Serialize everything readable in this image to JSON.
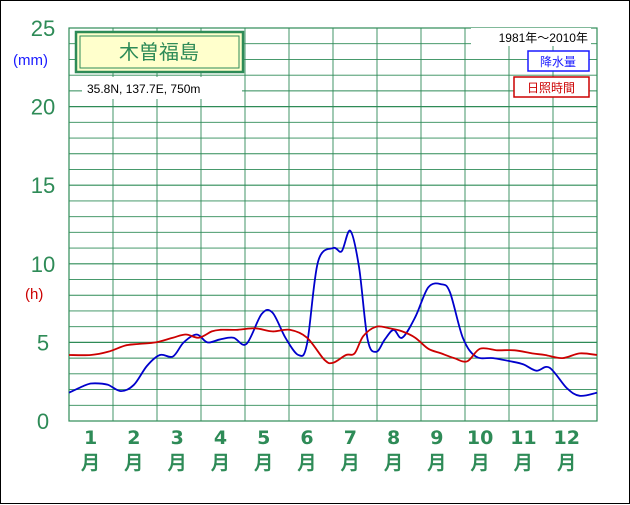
{
  "chart_data": {
    "type": "line",
    "station": "木曽福島",
    "coords": "35.8N,  137.7E,  750m",
    "period": "1981年〜2010年",
    "unit_precip": "(mm)",
    "unit_sun": "(h)",
    "y_ticks": [
      "0",
      "5",
      "10",
      "15",
      "20",
      "25"
    ],
    "ylim": [
      0,
      25
    ],
    "xlim": [
      0.5,
      12.7
    ],
    "categories": [
      {
        "num": "1",
        "suffix": "月"
      },
      {
        "num": "2",
        "suffix": "月"
      },
      {
        "num": "3",
        "suffix": "月"
      },
      {
        "num": "4",
        "suffix": "月"
      },
      {
        "num": "5",
        "suffix": "月"
      },
      {
        "num": "6",
        "suffix": "月"
      },
      {
        "num": "7",
        "suffix": "月"
      },
      {
        "num": "8",
        "suffix": "月"
      },
      {
        "num": "9",
        "suffix": "月"
      },
      {
        "num": "10",
        "suffix": "月"
      },
      {
        "num": "11",
        "suffix": "月"
      },
      {
        "num": "12",
        "suffix": "月"
      }
    ],
    "grid": true,
    "series": [
      {
        "name": "降水量",
        "color": "#0000cc",
        "x": [
          0.5,
          0.9,
          1.1,
          1.4,
          1.7,
          2.0,
          2.3,
          2.6,
          2.9,
          3.15,
          3.45,
          3.7,
          4.0,
          4.3,
          4.6,
          4.95,
          5.2,
          5.5,
          5.8,
          6.0,
          6.25,
          6.6,
          6.8,
          7.0,
          7.2,
          7.4,
          7.6,
          7.8,
          8.0,
          8.2,
          8.5,
          8.8,
          9.1,
          9.3,
          9.6,
          9.9,
          10.3,
          10.7,
          11.0,
          11.3,
          11.6,
          12.0,
          12.3,
          12.7
        ],
        "y": [
          1.8,
          2.3,
          2.4,
          2.3,
          1.9,
          2.3,
          3.5,
          4.2,
          4.1,
          5.0,
          5.5,
          5.0,
          5.2,
          5.3,
          4.9,
          6.8,
          6.9,
          5.3,
          4.2,
          4.9,
          10.1,
          11.0,
          10.8,
          12.1,
          9.8,
          5.2,
          4.4,
          5.2,
          5.8,
          5.3,
          6.6,
          8.5,
          8.7,
          8.2,
          5.3,
          4.1,
          4.0,
          3.8,
          3.6,
          3.2,
          3.4,
          2.1,
          1.6,
          1.8
        ]
      },
      {
        "name": "日照時間",
        "color": "#cc0000",
        "x": [
          0.5,
          1.0,
          1.4,
          1.8,
          2.1,
          2.5,
          2.9,
          3.2,
          3.5,
          3.8,
          4.0,
          4.4,
          4.8,
          5.2,
          5.6,
          6.0,
          6.4,
          6.6,
          6.9,
          7.1,
          7.3,
          7.6,
          7.9,
          8.2,
          8.5,
          8.8,
          9.1,
          9.4,
          9.7,
          10.0,
          10.4,
          10.8,
          11.2,
          11.5,
          11.9,
          12.3,
          12.7
        ],
        "y": [
          4.2,
          4.2,
          4.4,
          4.8,
          4.9,
          5.0,
          5.3,
          5.5,
          5.3,
          5.7,
          5.8,
          5.8,
          5.9,
          5.7,
          5.8,
          5.3,
          3.9,
          3.7,
          4.2,
          4.3,
          5.4,
          6.0,
          5.9,
          5.7,
          5.3,
          4.6,
          4.3,
          4.0,
          3.8,
          4.6,
          4.5,
          4.5,
          4.3,
          4.2,
          4.0,
          4.3,
          4.2
        ]
      }
    ]
  },
  "colors": {
    "grid": "#2e8b57",
    "axis_text": "#2e8b57",
    "station_bg": "#ffffcc"
  }
}
